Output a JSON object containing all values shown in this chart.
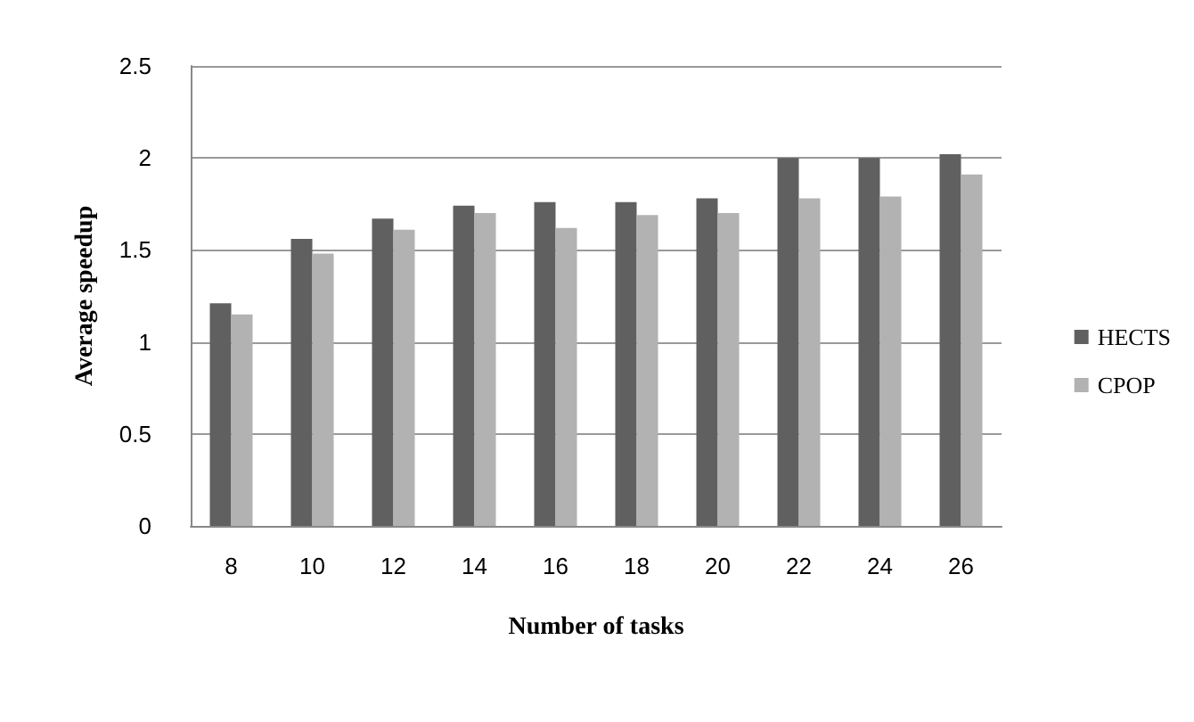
{
  "chart_data": {
    "type": "bar",
    "xlabel": "Number of tasks",
    "ylabel": "Average speedup",
    "categories": [
      "8",
      "10",
      "12",
      "14",
      "16",
      "18",
      "20",
      "22",
      "24",
      "26"
    ],
    "series": [
      {
        "name": "HECTS",
        "color": "#606060",
        "values": [
          1.21,
          1.56,
          1.67,
          1.74,
          1.76,
          1.76,
          1.78,
          2.0,
          2.0,
          2.02
        ]
      },
      {
        "name": "CPOP",
        "color": "#b2b2b2",
        "values": [
          1.15,
          1.48,
          1.61,
          1.7,
          1.62,
          1.69,
          1.7,
          1.78,
          1.79,
          1.91
        ]
      }
    ],
    "ylim": [
      0,
      2.5
    ],
    "yticks": [
      0,
      0.5,
      1,
      1.5,
      2,
      2.5
    ],
    "grid": "y",
    "legend": "right"
  }
}
